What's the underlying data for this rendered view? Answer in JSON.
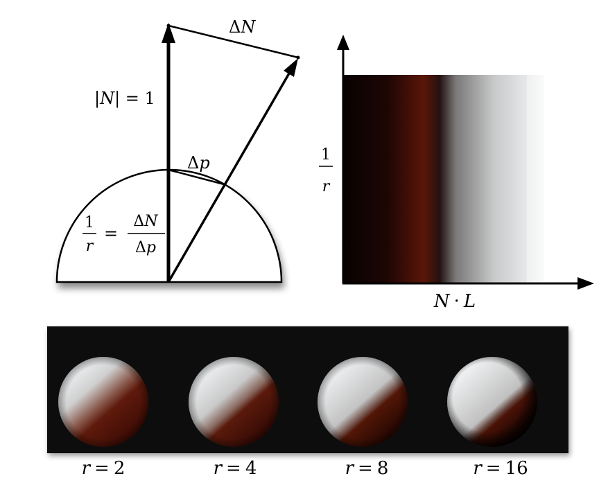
{
  "diagram": {
    "normal_label_abs": "|",
    "normal_label_N": "N",
    "normal_label_eq": "| = 1",
    "delta": "Δ",
    "delta_N_var": "N",
    "delta_p_var": "p",
    "curv_one": "1",
    "curv_r": "r",
    "curv_eq": "=",
    "curv_frac_num_var": "N",
    "curv_frac_den_var": "p"
  },
  "lookup": {
    "y_axis_one": "1",
    "y_axis_r": "r",
    "x_axis_N": "N",
    "x_axis_dot": "·",
    "x_axis_L": "L",
    "colors": {
      "dark": "#080202",
      "mid": "#5a1608",
      "light": "#f4f5f6"
    }
  },
  "spheres": {
    "items": [
      {
        "label_r": "r",
        "label_eq": "=",
        "label_val": "2"
      },
      {
        "label_r": "r",
        "label_eq": "=",
        "label_val": "4"
      },
      {
        "label_r": "r",
        "label_eq": "=",
        "label_val": "8"
      },
      {
        "label_r": "r",
        "label_eq": "=",
        "label_val": "16"
      }
    ],
    "panel_color": "#070707"
  }
}
